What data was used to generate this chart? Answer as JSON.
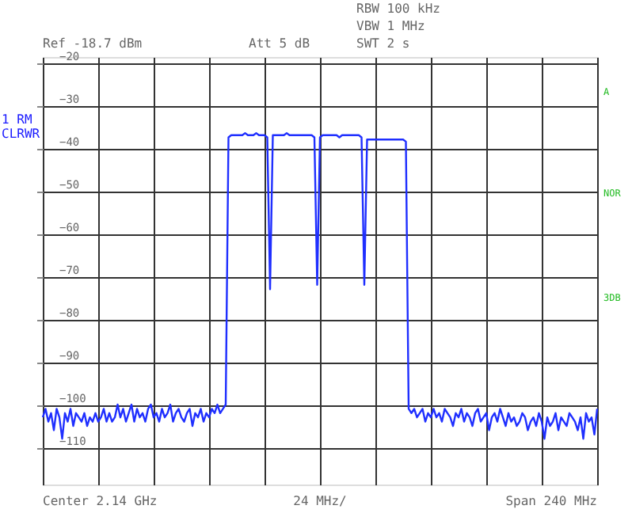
{
  "chart_data": {
    "type": "line",
    "ylim": [
      -118.7,
      -18.7
    ],
    "yticks": [
      -20,
      -30,
      -40,
      -50,
      -60,
      -70,
      -80,
      -90,
      -100,
      -110
    ],
    "grid": true,
    "tick_labels": "y",
    "marker": "none",
    "line_style": "solid",
    "annotations": [
      "Ref -18.7 dBm",
      "Att  5 dB",
      "RBW 100 kHz",
      "VBW 1 MHz",
      "SWT 2 s",
      "1 RM",
      "CLRWR",
      "A",
      "NOR",
      "3DB",
      "Center 2.14 GHz",
      "24 MHz/",
      "Span 240 MHz"
    ],
    "categories": [
      null,
      null,
      null,
      null,
      null,
      null,
      null,
      null,
      null,
      null,
      null,
      null,
      null,
      null,
      null,
      null,
      null,
      null,
      null,
      null,
      null,
      null,
      null,
      null,
      null,
      null,
      null,
      null,
      null,
      null,
      null,
      null,
      null,
      null,
      null,
      null,
      null,
      null,
      null,
      null,
      null,
      null,
      null,
      null,
      null,
      null,
      null,
      null,
      null,
      null,
      null,
      null,
      null,
      null,
      null,
      null,
      null,
      null,
      null,
      null,
      null,
      null,
      null,
      null,
      null,
      null,
      null,
      null,
      null,
      null,
      null,
      null,
      null,
      null,
      null,
      null,
      null,
      null,
      null,
      null,
      null,
      null,
      null,
      null,
      null,
      null,
      null,
      null,
      null,
      null,
      null,
      null,
      null,
      null,
      null,
      null,
      null,
      null,
      null,
      null,
      null,
      null,
      null,
      null,
      null,
      null,
      null,
      null,
      null,
      null,
      null,
      null,
      null,
      null,
      null,
      null,
      null,
      null,
      null,
      null,
      null,
      null,
      null,
      null,
      null,
      null,
      null,
      null,
      null,
      null,
      null,
      null,
      null,
      null,
      null,
      null,
      null,
      null,
      null,
      null,
      null,
      null,
      null,
      null,
      null,
      null,
      null,
      null,
      null,
      null,
      null,
      null,
      null,
      null,
      null,
      null,
      null,
      null,
      null,
      null,
      null,
      null,
      null,
      null,
      null,
      null,
      null,
      null,
      null,
      null,
      null,
      null,
      null,
      null,
      null,
      null,
      null,
      null,
      null,
      null,
      null,
      null,
      null,
      null,
      null,
      null,
      null,
      null,
      null,
      null,
      null,
      null,
      null,
      null,
      null,
      null,
      null,
      null,
      null,
      null,
      null
    ],
    "series": [
      {
        "color": "#1f2fff",
        "values": [
          -103,
          -101,
          -104,
          -102,
          -106,
          -101,
          -103,
          -108,
          -102,
          -104,
          -101,
          -105,
          -102,
          -103,
          -104,
          -102,
          -105,
          -103,
          -104,
          -102,
          -104,
          -103,
          -101,
          -104,
          -102,
          -104,
          -103,
          -100,
          -103,
          -101,
          -104,
          -102,
          -100,
          -104,
          -101,
          -103,
          -102,
          -104,
          -101,
          -100,
          -103,
          -102,
          -104,
          -101,
          -103,
          -102,
          -100,
          -104,
          -102,
          -101,
          -103,
          -104,
          -102,
          -101,
          -105,
          -102,
          -103,
          -101,
          -104,
          -102,
          -103,
          -101,
          -102,
          -100,
          -102,
          -101,
          -100,
          -37.5,
          -37,
          -37,
          -37,
          -37,
          -37,
          -36.5,
          -37,
          -37,
          -37,
          -36.5,
          -37,
          -37,
          -37,
          -37.5,
          -73,
          -37,
          -37,
          -37,
          -37,
          -37,
          -36.5,
          -37,
          -37,
          -37,
          -37,
          -37,
          -37,
          -37,
          -37,
          -37,
          -37.5,
          -72,
          -37.5,
          -37,
          -37,
          -37,
          -37,
          -37,
          -37,
          -37.5,
          -37,
          -37,
          -37,
          -37,
          -37,
          -37,
          -37,
          -37.5,
          -72,
          -38,
          -38,
          -38,
          -38,
          -38,
          -38,
          -38,
          -38,
          -38,
          -38,
          -38,
          -38,
          -38,
          -38,
          -38.5,
          -101,
          -102,
          -101,
          -103,
          -102,
          -101,
          -104,
          -102,
          -103,
          -101,
          -103,
          -102,
          -104,
          -101,
          -102,
          -103,
          -105,
          -102,
          -103,
          -101,
          -104,
          -102,
          -103,
          -105,
          -102,
          -101,
          -104,
          -103,
          -102,
          -106,
          -103,
          -102,
          -104,
          -101,
          -103,
          -105,
          -102,
          -104,
          -103,
          -105,
          -104,
          -102,
          -103,
          -106,
          -104,
          -103,
          -105,
          -102,
          -104,
          -108,
          -103,
          -105,
          -104,
          -102,
          -106,
          -103,
          -104,
          -105,
          -102,
          -103,
          -104,
          -106,
          -103,
          -108,
          -102,
          -104,
          -103,
          -107,
          -101
        ]
      }
    ]
  }
}
